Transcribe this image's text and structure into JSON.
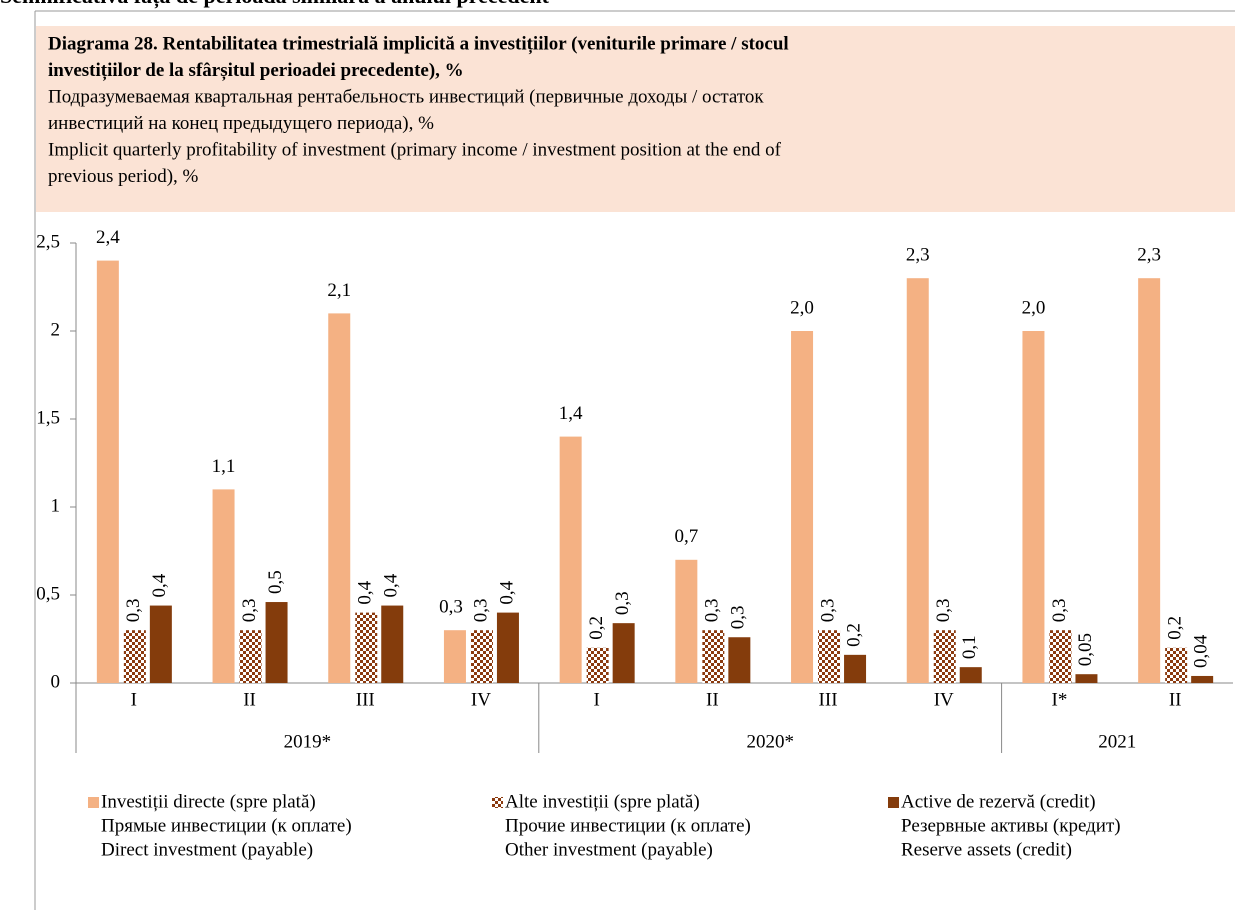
{
  "page_heading": "Semnificativă față de perioada similară a anului precedent",
  "chart_data": {
    "type": "bar",
    "title": [
      "Diagrama 28. Rentabilitatea trimestrială implicită a investițiilor (veniturile primare / stocul",
      "investițiilor de la sfârșitul perioadei precedente), %"
    ],
    "subtitle_ru": [
      "Подразумеваемая квартальная рентабельность инвестиций (первичные доходы / остаток",
      "инвестиций на конец предыдущего периода), %"
    ],
    "subtitle_en": [
      "Implicit quarterly profitability of investment (primary income / investment position at the end of",
      "previous period), %"
    ],
    "categories": [
      "I",
      "II",
      "III",
      "IV",
      "I",
      "II",
      "III",
      "IV",
      "I*",
      "II"
    ],
    "groups": [
      {
        "label": "2019*",
        "span": 4
      },
      {
        "label": "2020*",
        "span": 4
      },
      {
        "label": "2021",
        "span": 2
      }
    ],
    "series": [
      {
        "name": "Investiții directe (spre plată)",
        "name_ru": "Прямые инвестиции (к оплате)",
        "name_en": "Direct investment (payable)",
        "color": "#f4b183",
        "values": [
          2.4,
          1.1,
          2.1,
          0.3,
          1.4,
          0.7,
          2.0,
          2.3,
          2.0,
          2.3
        ],
        "value_labels": [
          "2,4",
          "1,1",
          "2,1",
          "0,3",
          "1,4",
          "0,7",
          "2,0",
          "2,3",
          "2,0",
          "2,3"
        ]
      },
      {
        "name": "Alte investiții (spre plată)",
        "name_ru": "Прочие инвестиции (к оплате)",
        "name_en": "Other investment (payable)",
        "color": "#8b3a0f",
        "pattern": "checkered",
        "values": [
          0.3,
          0.3,
          0.4,
          0.3,
          0.2,
          0.3,
          0.3,
          0.3,
          0.3,
          0.2
        ],
        "value_labels": [
          "0,3",
          "0,3",
          "0,4",
          "0,3",
          "0,2",
          "0,3",
          "0,3",
          "0,3",
          "0,3",
          "0,2"
        ]
      },
      {
        "name": "Active de rezervă (credit)",
        "name_ru": "Резервные активы (кредит)",
        "name_en": "Reserve assets (credit)",
        "color": "#843c0c",
        "values": [
          0.44,
          0.46,
          0.44,
          0.4,
          0.34,
          0.26,
          0.16,
          0.09,
          0.05,
          0.04
        ],
        "value_labels": [
          "0,4",
          "0,5",
          "0,4",
          "0,4",
          "0,3",
          "0,3",
          "0,2",
          "0,1",
          "0,05",
          "0,04"
        ]
      }
    ],
    "ylim": [
      0,
      2.5
    ],
    "yticks": [
      0,
      {
        "value": 0.5,
        "label": "0,5"
      },
      1,
      {
        "value": 1.5,
        "label": "1,5"
      },
      2,
      {
        "value": 2.5,
        "label": "2,5"
      }
    ]
  }
}
